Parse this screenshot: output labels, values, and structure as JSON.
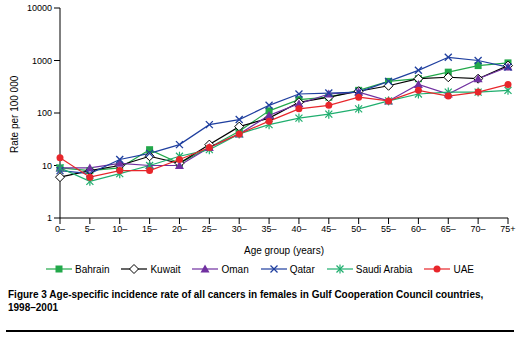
{
  "chart_data": {
    "type": "line",
    "title": "Figure 3 Age-specific incidence rate of all cancers in females in Gulf Cooperation Council countries, 1998–2001",
    "x_label": "Age group (years)",
    "y_label": "Rate per 100 000",
    "categories": [
      "0–",
      "5–",
      "10–",
      "15–",
      "20–",
      "25–",
      "30–",
      "35–",
      "40–",
      "45–",
      "50–",
      "55–",
      "60–",
      "65–",
      "70–",
      "75+"
    ],
    "series": [
      {
        "name": "Bahrain",
        "color": "#22a84a",
        "marker": "square",
        "values": [
          9,
          8,
          9,
          20,
          11,
          22,
          45,
          110,
          180,
          200,
          270,
          400,
          450,
          600,
          800,
          900
        ]
      },
      {
        "name": "Kuwait",
        "color": "#000000",
        "marker": "open_diamond",
        "values": [
          6,
          8,
          10,
          15,
          11,
          25,
          55,
          80,
          160,
          200,
          260,
          330,
          450,
          480,
          450,
          800
        ]
      },
      {
        "name": "Oman",
        "color": "#7030a0",
        "marker": "triangle",
        "values": [
          9,
          9,
          11,
          10,
          10,
          22,
          40,
          90,
          150,
          230,
          250,
          170,
          350,
          230,
          450,
          750
        ]
      },
      {
        "name": "Qatar",
        "color": "#1f3f9f",
        "marker": "x",
        "values": [
          8,
          7,
          13,
          17,
          25,
          60,
          75,
          140,
          230,
          240,
          250,
          400,
          650,
          1150,
          1000,
          750
        ]
      },
      {
        "name": "Saudi Arabia",
        "color": "#1fae6e",
        "marker": "star",
        "values": [
          9,
          5,
          7,
          10,
          15,
          20,
          40,
          60,
          80,
          95,
          120,
          170,
          230,
          250,
          250,
          270
        ]
      },
      {
        "name": "UAE",
        "color": "#e8262b",
        "marker": "circle",
        "values": [
          14,
          6,
          8,
          8,
          13,
          22,
          40,
          70,
          120,
          140,
          200,
          170,
          270,
          210,
          250,
          350
        ]
      }
    ],
    "log": "y",
    "ylim": [
      1,
      10000
    ],
    "yticks": [
      1,
      10,
      100,
      1000,
      10000
    ],
    "grid": false,
    "legend": "bottom"
  }
}
